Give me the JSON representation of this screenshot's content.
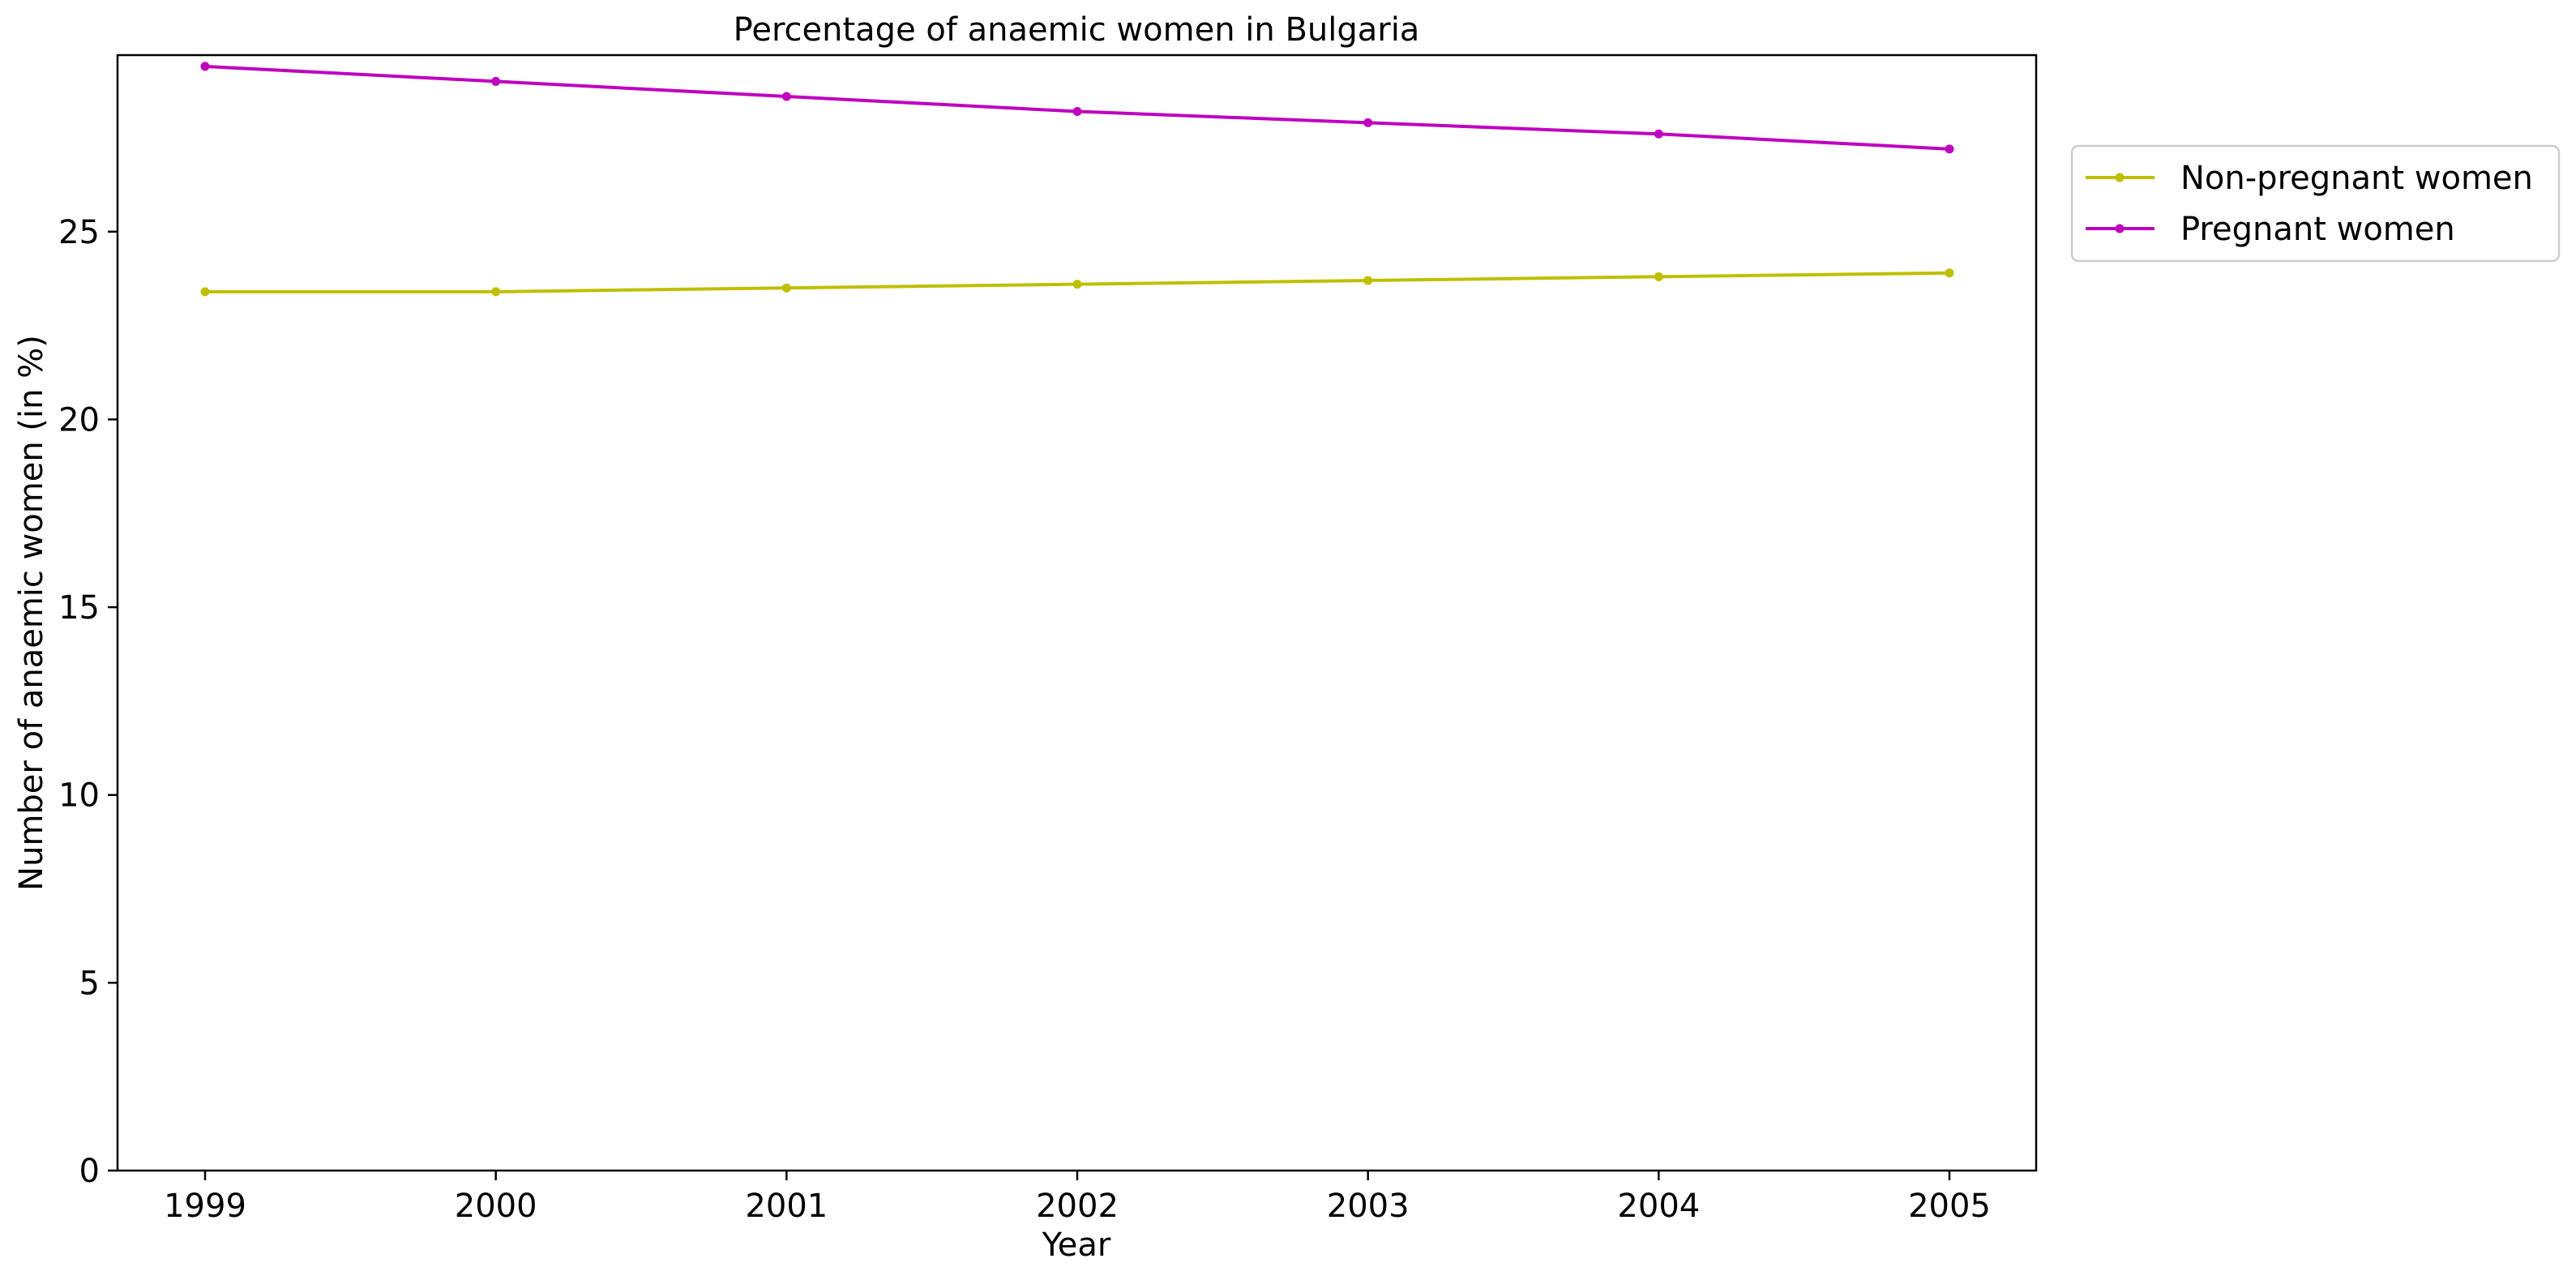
{
  "chart_data": {
    "type": "line",
    "title": "Percentage of anaemic women in Bulgaria",
    "xlabel": "Year",
    "ylabel": "Number of anaemic women (in %)",
    "x": [
      "1999",
      "2000",
      "2001",
      "2002",
      "2003",
      "2004",
      "2005"
    ],
    "ylim": [
      0,
      29.7
    ],
    "yticks": [
      0,
      5,
      10,
      15,
      20,
      25
    ],
    "grid": false,
    "legend_position": "upper-right-outside",
    "series": [
      {
        "name": "Non-pregnant women",
        "color": "#bfbf00",
        "values": [
          23.4,
          23.4,
          23.5,
          23.6,
          23.7,
          23.8,
          23.9
        ]
      },
      {
        "name": "Pregnant women",
        "color": "#bf00bf",
        "values": [
          29.4,
          29.0,
          28.6,
          28.2,
          27.9,
          27.6,
          27.2
        ]
      }
    ]
  }
}
